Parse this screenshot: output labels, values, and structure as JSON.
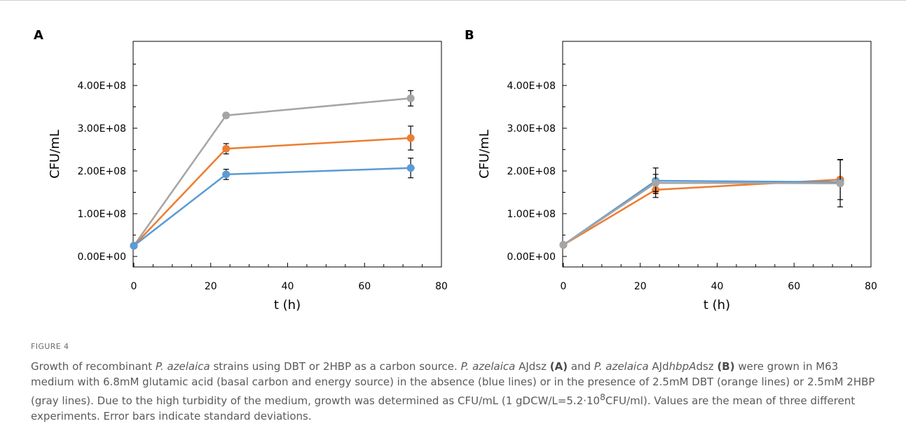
{
  "figure_label": "FIGURE 4",
  "caption": {
    "s1": "Growth of recombinant ",
    "i1": "P. azelaica",
    "s2": " strains using DBT or 2HBP as a carbon source. ",
    "i2": "P. azelaica",
    "s3": " AJdsz ",
    "b1": "(A)",
    "s4": " and ",
    "i3": "P. azelaica",
    "s5": " AJd",
    "i4": "hbpA",
    "s6": "dsz ",
    "b2": "(B)",
    "s7": " were grown in M63 medium with 6.8mM glutamic acid (basal carbon and energy source) in the absence (blue lines) or in the presence of 2.5mM DBT (orange lines) or 2.5mM 2HBP (gray lines). Due to the high turbidity of the medium, growth was determined as CFU/mL (1 gDCW/L=5.2·10",
    "sup": "8",
    "s8": "CFU/ml). Values are the mean of three different experiments. Error bars indicate standard deviations."
  },
  "colors": {
    "blue": "#5b9bd5",
    "orange": "#ed7d31",
    "gray": "#a5a5a5",
    "caption": "#5a5a5a"
  },
  "chart_data": [
    {
      "type": "line",
      "panel": "A",
      "xlabel": "t (h)",
      "ylabel": "CFU/mL",
      "xlim": [
        0,
        80
      ],
      "ylim": [
        0,
        400000000
      ],
      "xticks": [
        "0",
        "20",
        "40",
        "60",
        "80"
      ],
      "yticks": [
        "0.00E+00",
        "1.00E+08",
        "2.00E+08",
        "3.00E+08",
        "4.00E+08"
      ],
      "grid": false,
      "x": [
        0,
        24,
        72
      ],
      "series": [
        {
          "color": "#a5a5a5",
          "values": [
            25000000,
            330000000,
            370000000
          ],
          "errors": [
            0,
            0,
            18000000
          ]
        },
        {
          "color": "#ed7d31",
          "values": [
            25000000,
            252000000,
            277000000
          ],
          "errors": [
            0,
            12000000,
            28000000
          ]
        },
        {
          "color": "#5b9bd5",
          "values": [
            25000000,
            192000000,
            207000000
          ],
          "errors": [
            0,
            12000000,
            23000000
          ]
        }
      ]
    },
    {
      "type": "line",
      "panel": "B",
      "xlabel": "t (h)",
      "ylabel": "CFU/mL",
      "xlim": [
        0,
        80
      ],
      "ylim": [
        0,
        400000000
      ],
      "xticks": [
        "0",
        "20",
        "40",
        "60",
        "80"
      ],
      "yticks": [
        "0.00E+00",
        "1.00E+08",
        "2.00E+08",
        "3.00E+08",
        "4.00E+08"
      ],
      "grid": false,
      "x": [
        0,
        24,
        72
      ],
      "series": [
        {
          "color": "#ed7d31",
          "values": [
            27000000,
            156000000,
            180000000
          ],
          "errors": [
            0,
            18000000,
            47000000
          ]
        },
        {
          "color": "#5b9bd5",
          "values": [
            27000000,
            177000000,
            174000000
          ],
          "errors": [
            0,
            30000000,
            0
          ]
        },
        {
          "color": "#a5a5a5",
          "values": [
            27000000,
            172000000,
            171000000
          ],
          "errors": [
            0,
            20000000,
            55000000
          ]
        }
      ]
    }
  ]
}
